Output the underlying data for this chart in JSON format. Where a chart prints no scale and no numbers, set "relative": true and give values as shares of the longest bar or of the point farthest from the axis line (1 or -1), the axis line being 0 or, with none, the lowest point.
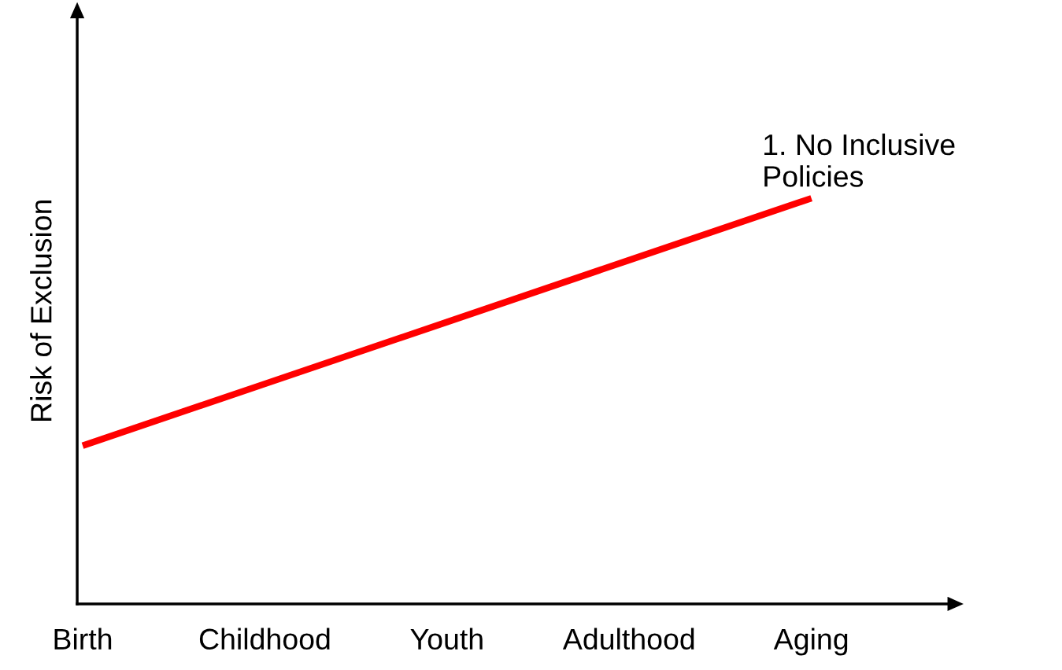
{
  "chart_data": {
    "type": "line",
    "relative": true,
    "ylabel": "Risk of Exclusion",
    "categories": [
      "Birth",
      "Childhood",
      "Youth",
      "Adulthood",
      "Aging"
    ],
    "series": [
      {
        "name": "1. No Inclusive Policies",
        "color": "#ff0000",
        "values": [
          0.39,
          0.5425,
          0.695,
          0.8475,
          1
        ]
      }
    ],
    "grid": false,
    "legend": false,
    "marker": "none",
    "line_style": "solid"
  }
}
